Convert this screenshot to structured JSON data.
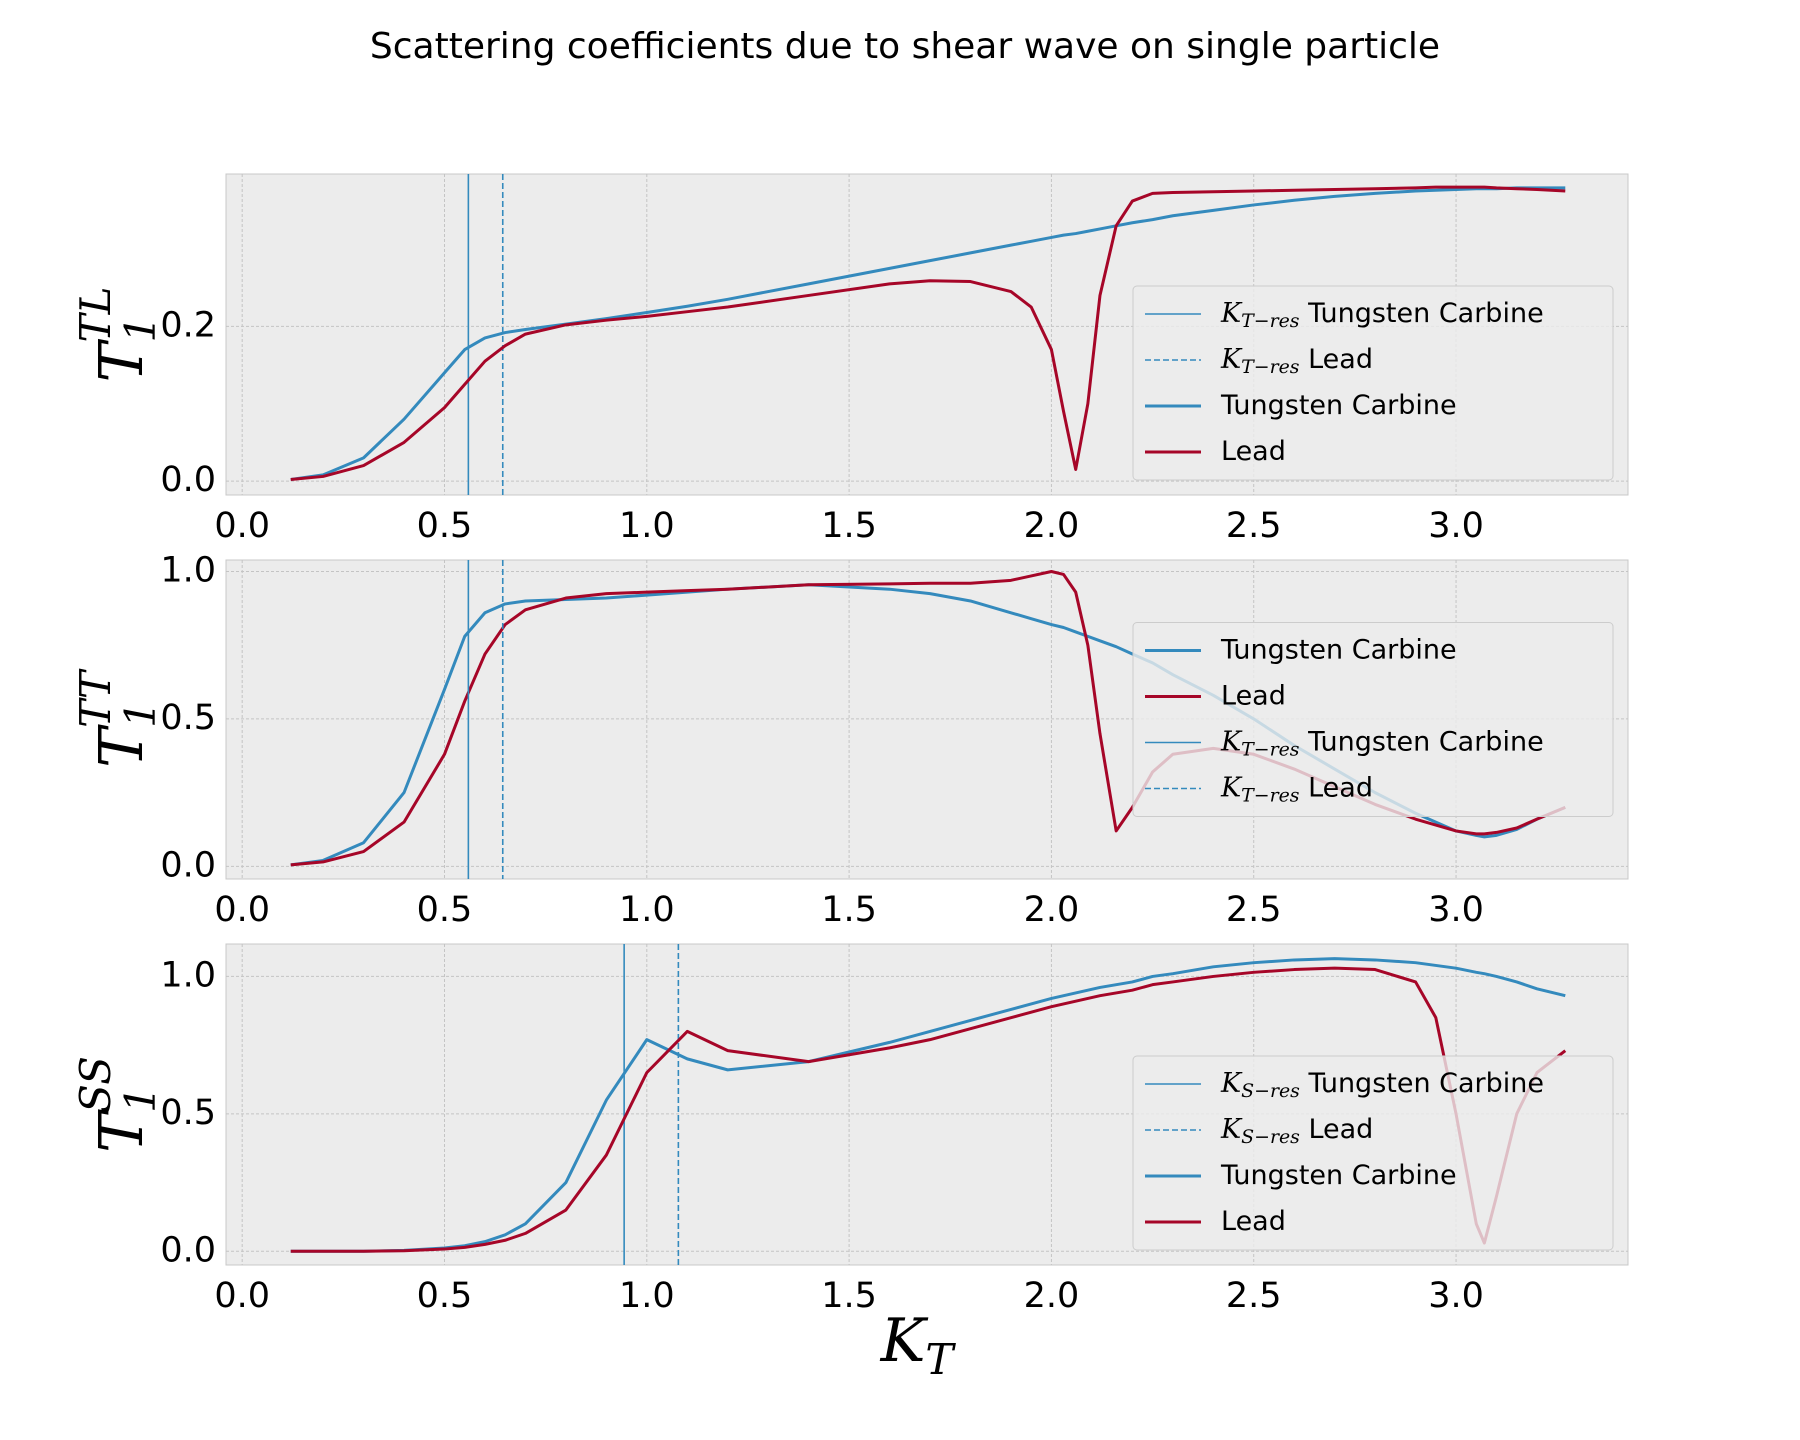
{
  "title": "Scattering coefficients due to shear wave on single particle",
  "chart_data": [
    {
      "type": "line",
      "ylabel": "$T_1^{TL}$",
      "legend_loc": "lower right",
      "grid": true,
      "xlim": [
        -0.04,
        3.425
      ],
      "ylim": [
        -0.018,
        0.397
      ],
      "xticks": [
        {
          "value": 0,
          "label": "0.0"
        },
        0.5,
        {
          "value": 1,
          "label": "1.0"
        },
        1.5,
        {
          "value": 2,
          "label": "2.0"
        },
        2.5,
        {
          "value": 3,
          "label": "3.0"
        }
      ],
      "yticks": [
        {
          "value": 0,
          "label": "0.0"
        },
        0.2
      ],
      "x": [
        0.12,
        0.2,
        0.3,
        0.4,
        0.5,
        0.55,
        0.6,
        0.65,
        0.7,
        0.8,
        0.9,
        1.0,
        1.1,
        1.2,
        1.4,
        1.6,
        1.7,
        1.8,
        1.9,
        1.95,
        2.0,
        2.03,
        2.06,
        2.09,
        2.12,
        2.16,
        2.2,
        2.25,
        2.3,
        2.4,
        2.5,
        2.6,
        2.7,
        2.8,
        2.9,
        2.95,
        3.0,
        3.05,
        3.07,
        3.1,
        3.15,
        3.2,
        3.27
      ],
      "series": [
        {
          "name": "$K_{T-res}$ Tungsten Carbine",
          "color": "#348abd",
          "vline": 0.559,
          "style": "solid"
        },
        {
          "name": "$K_{T-res}$ Lead",
          "color": "#348abd",
          "vline": 0.644,
          "style": "dashed"
        },
        {
          "name": "Tungsten Carbine",
          "color": "#348abd",
          "values": [
            0.002,
            0.008,
            0.03,
            0.08,
            0.14,
            0.17,
            0.185,
            0.192,
            0.196,
            0.203,
            0.21,
            0.218,
            0.226,
            0.235,
            0.255,
            0.275,
            0.285,
            0.295,
            0.305,
            0.31,
            0.315,
            0.318,
            0.32,
            0.323,
            0.326,
            0.33,
            0.334,
            0.338,
            0.343,
            0.35,
            0.357,
            0.363,
            0.368,
            0.372,
            0.375,
            0.376,
            0.377,
            0.378,
            0.378,
            0.378,
            0.379,
            0.379,
            0.379
          ]
        },
        {
          "name": "Lead",
          "color": "#a60628",
          "values": [
            0.002,
            0.006,
            0.02,
            0.05,
            0.095,
            0.125,
            0.155,
            0.175,
            0.19,
            0.202,
            0.208,
            0.213,
            0.219,
            0.225,
            0.24,
            0.255,
            0.259,
            0.258,
            0.245,
            0.225,
            0.17,
            0.09,
            0.015,
            0.1,
            0.24,
            0.33,
            0.362,
            0.372,
            0.373,
            0.374,
            0.375,
            0.376,
            0.377,
            0.378,
            0.379,
            0.38,
            0.38,
            0.38,
            0.38,
            0.379,
            0.378,
            0.377,
            0.375
          ]
        }
      ]
    },
    {
      "type": "line",
      "ylabel": "$T_1^{TT}$",
      "legend_loc": "center right",
      "grid": true,
      "xlim": [
        -0.04,
        3.425
      ],
      "ylim": [
        -0.043,
        1.039
      ],
      "xticks": [
        {
          "value": 0,
          "label": "0.0"
        },
        0.5,
        {
          "value": 1,
          "label": "1.0"
        },
        1.5,
        {
          "value": 2,
          "label": "2.0"
        },
        2.5,
        {
          "value": 3,
          "label": "3.0"
        }
      ],
      "yticks": [
        {
          "value": 0,
          "label": "0.0"
        },
        0.5,
        {
          "value": 1,
          "label": "1.0"
        }
      ],
      "x": [
        0.12,
        0.2,
        0.3,
        0.4,
        0.5,
        0.55,
        0.6,
        0.65,
        0.7,
        0.8,
        0.9,
        1.0,
        1.1,
        1.2,
        1.4,
        1.6,
        1.7,
        1.8,
        1.9,
        1.95,
        2.0,
        2.03,
        2.06,
        2.09,
        2.12,
        2.16,
        2.2,
        2.25,
        2.3,
        2.4,
        2.5,
        2.6,
        2.7,
        2.8,
        2.9,
        2.95,
        3.0,
        3.05,
        3.07,
        3.1,
        3.15,
        3.2,
        3.27
      ],
      "series": [
        {
          "name": "Tungsten Carbine",
          "color": "#348abd",
          "values": [
            0.005,
            0.02,
            0.08,
            0.25,
            0.6,
            0.78,
            0.86,
            0.89,
            0.9,
            0.905,
            0.91,
            0.92,
            0.93,
            0.94,
            0.955,
            0.94,
            0.925,
            0.9,
            0.86,
            0.84,
            0.82,
            0.81,
            0.795,
            0.78,
            0.765,
            0.745,
            0.72,
            0.69,
            0.65,
            0.58,
            0.5,
            0.41,
            0.33,
            0.25,
            0.18,
            0.15,
            0.12,
            0.105,
            0.1,
            0.105,
            0.125,
            0.16,
            0.2
          ]
        },
        {
          "name": "Lead",
          "color": "#a60628",
          "values": [
            0.005,
            0.015,
            0.05,
            0.15,
            0.38,
            0.56,
            0.72,
            0.82,
            0.87,
            0.91,
            0.925,
            0.93,
            0.935,
            0.94,
            0.955,
            0.958,
            0.96,
            0.96,
            0.97,
            0.985,
            1.0,
            0.99,
            0.93,
            0.75,
            0.45,
            0.12,
            0.2,
            0.32,
            0.38,
            0.4,
            0.38,
            0.33,
            0.27,
            0.21,
            0.16,
            0.14,
            0.12,
            0.11,
            0.11,
            0.115,
            0.13,
            0.16,
            0.2
          ]
        },
        {
          "name": "$K_{T-res}$ Tungsten Carbine",
          "color": "#348abd",
          "vline": 0.559,
          "style": "solid"
        },
        {
          "name": "$K_{T-res}$ Lead",
          "color": "#348abd",
          "vline": 0.644,
          "style": "dashed"
        }
      ]
    },
    {
      "type": "line",
      "ylabel": "$T_1^{SS}$",
      "xlabel": "$K_T$",
      "legend_loc": "lower right",
      "grid": true,
      "xlim": [
        -0.04,
        3.425
      ],
      "ylim": [
        -0.05,
        1.118
      ],
      "xticks": [
        {
          "value": 0,
          "label": "0.0"
        },
        0.5,
        {
          "value": 1,
          "label": "1.0"
        },
        1.5,
        {
          "value": 2,
          "label": "2.0"
        },
        2.5,
        {
          "value": 3,
          "label": "3.0"
        }
      ],
      "yticks": [
        {
          "value": 0,
          "label": "0.0"
        },
        0.5,
        {
          "value": 1,
          "label": "1.0"
        }
      ],
      "x": [
        0.12,
        0.2,
        0.3,
        0.4,
        0.5,
        0.55,
        0.6,
        0.65,
        0.7,
        0.8,
        0.9,
        1.0,
        1.1,
        1.2,
        1.4,
        1.6,
        1.7,
        1.8,
        1.9,
        1.95,
        2.0,
        2.03,
        2.06,
        2.09,
        2.12,
        2.16,
        2.2,
        2.25,
        2.3,
        2.4,
        2.5,
        2.6,
        2.7,
        2.8,
        2.9,
        2.95,
        3.0,
        3.05,
        3.07,
        3.1,
        3.15,
        3.2,
        3.27
      ],
      "series": [
        {
          "name": "$K_{S-res}$ Tungsten Carbine",
          "color": "#348abd",
          "vline": 0.944,
          "style": "solid"
        },
        {
          "name": "$K_{S-res}$ Lead",
          "color": "#348abd",
          "vline": 1.078,
          "style": "dashed"
        },
        {
          "name": "Tungsten Carbine",
          "color": "#348abd",
          "values": [
            0,
            0,
            0,
            0.003,
            0.012,
            0.02,
            0.035,
            0.06,
            0.1,
            0.25,
            0.55,
            0.77,
            0.7,
            0.66,
            0.69,
            0.76,
            0.8,
            0.84,
            0.88,
            0.9,
            0.92,
            0.93,
            0.94,
            0.95,
            0.96,
            0.97,
            0.98,
            1.0,
            1.01,
            1.035,
            1.05,
            1.06,
            1.065,
            1.06,
            1.05,
            1.04,
            1.03,
            1.015,
            1.01,
            1.0,
            0.98,
            0.955,
            0.93
          ]
        },
        {
          "name": "Lead",
          "color": "#a60628",
          "values": [
            0,
            0,
            0,
            0.002,
            0.008,
            0.014,
            0.025,
            0.04,
            0.065,
            0.15,
            0.35,
            0.65,
            0.8,
            0.73,
            0.69,
            0.74,
            0.77,
            0.81,
            0.85,
            0.87,
            0.89,
            0.9,
            0.91,
            0.92,
            0.93,
            0.94,
            0.95,
            0.97,
            0.98,
            1.0,
            1.015,
            1.025,
            1.03,
            1.025,
            0.98,
            0.85,
            0.5,
            0.1,
            0.03,
            0.2,
            0.5,
            0.65,
            0.73
          ]
        }
      ]
    }
  ]
}
